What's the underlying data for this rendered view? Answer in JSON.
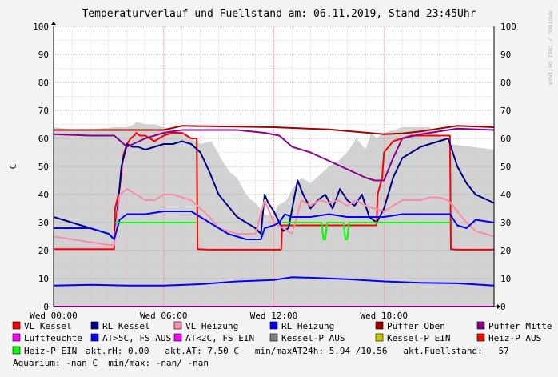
{
  "title": "Temperaturverlauf und Fuellstand am: 06.11.2019, Stand 23:45Uhr",
  "watermark": "RRDTOOL / TOBI OETIKER",
  "chart_data": {
    "type": "line",
    "ylabel": "C",
    "ylim": [
      0,
      100
    ],
    "y_ticks": [
      0,
      10,
      20,
      30,
      40,
      50,
      60,
      70,
      80,
      90,
      100
    ],
    "xlim": [
      0,
      24
    ],
    "x_ticks": [
      {
        "hour": 0,
        "label": "Wed 00:00"
      },
      {
        "hour": 6,
        "label": "Wed 06:00"
      },
      {
        "hour": 12,
        "label": "Wed 12:00"
      },
      {
        "hour": 18,
        "label": "Wed 18:00"
      }
    ],
    "grid": true,
    "area": {
      "name": "akt.Fuellstand",
      "color": "#d2d2d2",
      "x": [
        0,
        1.3,
        1.7,
        3.3,
        4.0,
        4.4,
        4.5,
        5.0,
        5.5,
        6.5,
        7.5,
        8.0,
        8.6,
        9.2,
        9.6,
        10.0,
        10.5,
        10.8,
        11.0,
        11.5,
        12.0,
        12.2,
        12.7,
        13.0,
        13.5,
        14.0,
        14.5,
        15.0,
        15.5,
        16.0,
        16.5,
        17.0,
        17.3,
        17.6,
        18.0,
        19.0,
        20.5,
        21.6,
        24.0
      ],
      "values": [
        64,
        63,
        63,
        64,
        64,
        65,
        66,
        65,
        65,
        63,
        60,
        58,
        59,
        52,
        48,
        46,
        40,
        38,
        37,
        33,
        32,
        36,
        38,
        42,
        46,
        44,
        47,
        50,
        52,
        55,
        60,
        56,
        62,
        60,
        62,
        64,
        64,
        58,
        56
      ]
    },
    "series": [
      {
        "name": "VL Kessel",
        "color": "#ff0000",
        "x": [
          0,
          1.0,
          2.5,
          3.3,
          3.35,
          3.6,
          3.8,
          4.0,
          4.2,
          4.4,
          4.5,
          4.7,
          5.0,
          5.5,
          6.0,
          6.5,
          7.0,
          7.5,
          7.8,
          7.85,
          8.5,
          9.5,
          10.5,
          10.7,
          11.0,
          11.5,
          12.0,
          12.4,
          12.45,
          15.0,
          16.0,
          17.0,
          17.6,
          17.65,
          17.9,
          18.0,
          18.5,
          19.0,
          19.5,
          20.0,
          20.5,
          21.0,
          21.6,
          21.65,
          22.0,
          22.5,
          23.0,
          24.0
        ],
        "values": [
          20.5,
          20.5,
          20.5,
          20.5,
          35,
          42,
          54,
          58,
          60,
          61,
          62,
          61,
          61,
          59,
          61,
          62,
          62,
          60,
          60,
          20.5,
          20.3,
          20.3,
          20.3,
          20.3,
          20.3,
          20.3,
          20.3,
          20.3,
          29,
          29,
          29,
          29,
          29,
          40,
          46,
          55,
          59,
          60,
          61,
          61,
          61,
          61,
          61,
          20.5,
          20.3,
          20.3,
          20.3,
          20.3
        ]
      },
      {
        "name": "RL Kessel",
        "color": "#00008b",
        "x": [
          0,
          1.0,
          2.0,
          3.0,
          3.3,
          3.5,
          3.7,
          4.0,
          4.3,
          4.6,
          5.0,
          5.5,
          6.0,
          6.5,
          7.0,
          7.5,
          8.0,
          8.5,
          9.0,
          9.5,
          10.0,
          10.5,
          11.0,
          11.3,
          11.5,
          11.7,
          12.0,
          12.3,
          12.5,
          12.8,
          13.0,
          13.3,
          13.6,
          14.0,
          14.4,
          14.8,
          15.2,
          15.6,
          16.0,
          16.4,
          16.8,
          17.2,
          17.6,
          18.0,
          18.5,
          19.0,
          19.5,
          20.0,
          20.5,
          21.0,
          21.5,
          22.0,
          22.5,
          23.0,
          24.0
        ],
        "values": [
          32,
          30,
          28,
          26,
          24,
          36,
          50,
          58,
          57,
          57,
          56,
          57,
          58,
          58,
          59,
          58,
          55,
          48,
          40,
          36,
          32,
          30,
          28,
          26,
          40,
          37,
          34,
          30,
          27,
          28,
          35,
          45,
          40,
          35,
          38,
          40,
          35,
          42,
          38,
          36,
          40,
          32,
          30,
          35,
          46,
          53,
          55,
          57,
          58,
          59,
          60,
          50,
          44,
          40,
          37
        ]
      },
      {
        "name": "VL Heizung",
        "color": "#ff8aa8",
        "x": [
          0,
          1.0,
          2.0,
          3.0,
          3.3,
          3.6,
          4.0,
          4.5,
          5.0,
          5.5,
          6.0,
          6.5,
          7.0,
          7.5,
          8.0,
          8.5,
          9.0,
          9.5,
          10.0,
          11.0,
          11.5,
          12.0,
          12.5,
          13.0,
          13.5,
          14.0,
          14.5,
          15.0,
          15.5,
          16.0,
          16.5,
          17.0,
          18.0,
          18.5,
          19.0,
          20.0,
          20.5,
          21.0,
          21.5,
          22.0,
          22.5,
          23.0,
          24.0
        ],
        "values": [
          25,
          24,
          23,
          22,
          22,
          40,
          42,
          40,
          38,
          38,
          40,
          40,
          39,
          38,
          35,
          32,
          28,
          27,
          26,
          26,
          38,
          30,
          28,
          26,
          38,
          36,
          38,
          37,
          38,
          36,
          38,
          36,
          34,
          36,
          38,
          38,
          39,
          39,
          38,
          34,
          30,
          27,
          25
        ]
      },
      {
        "name": "RL Heizung",
        "color": "#0000ff",
        "x": [
          0,
          1.0,
          2.0,
          3.0,
          3.3,
          3.6,
          4.0,
          5.0,
          6.0,
          7.0,
          7.5,
          8.0,
          8.5,
          9.0,
          9.5,
          10.0,
          10.5,
          11.0,
          11.3,
          11.5,
          12.0,
          12.3,
          12.6,
          13.0,
          14.0,
          15.0,
          16.0,
          17.0,
          18.0,
          19.0,
          20.0,
          21.0,
          21.6,
          22.0,
          22.5,
          23.0,
          24.0
        ],
        "values": [
          28,
          28,
          28,
          26,
          24,
          31,
          33,
          33,
          34,
          34,
          34,
          32,
          30,
          28,
          26,
          25,
          24,
          24,
          24,
          28,
          29,
          30,
          33,
          32,
          32,
          33,
          32,
          32,
          32,
          33,
          33,
          33,
          33,
          29,
          28,
          31,
          30
        ]
      },
      {
        "name": "Puffer Oben",
        "color": "#a00000",
        "x": [
          0,
          3.0,
          6.0,
          7.0,
          10.0,
          12.0,
          15.0,
          18.0,
          19.0,
          20.0,
          21.0,
          22.0,
          24.0
        ],
        "values": [
          63,
          63,
          63,
          64.5,
          64.2,
          64,
          63.2,
          61.5,
          61.8,
          62.5,
          63.5,
          64.5,
          64
        ]
      },
      {
        "name": "Puffer Mitte",
        "color": "#8b008b",
        "x": [
          0,
          2.0,
          3.3,
          4.0,
          5.0,
          6.0,
          7.0,
          8.0,
          10.0,
          11.5,
          12.3,
          13.0,
          14.0,
          15.0,
          16.0,
          17.0,
          17.5,
          18.0,
          18.5,
          19.0,
          20.0,
          21.0,
          22.0,
          24.0
        ],
        "values": [
          61.5,
          61,
          61,
          57,
          60,
          62,
          63,
          63,
          63,
          62,
          61,
          57,
          55,
          52,
          49,
          46,
          45,
          45,
          53,
          60,
          61.5,
          62.5,
          63.5,
          63
        ]
      },
      {
        "name": "Luftfeuchte",
        "color": "#ff00ff",
        "x": [
          0,
          24
        ],
        "values": [
          0,
          0
        ]
      },
      {
        "name": "AT>5C, FS AUS",
        "color": "#0000ff",
        "x": [
          0,
          2.0,
          4.0,
          6.0,
          8.0,
          10.0,
          12.0,
          13.0,
          14.0,
          16.0,
          18.0,
          20.0,
          22.0,
          24.0
        ],
        "values": [
          7.5,
          7.8,
          7.5,
          7.5,
          8,
          9,
          9.5,
          10.5,
          10.3,
          9.8,
          9,
          8.5,
          8.3,
          7.5
        ]
      },
      {
        "name": "Heiz-P EIN",
        "color": "#00ff00",
        "x": [
          0,
          3.3,
          3.35,
          7.8,
          7.85,
          12.4,
          12.45,
          14.6,
          14.7,
          14.8,
          14.9,
          15.8,
          15.9,
          16.0,
          16.1,
          21.6,
          21.65,
          24.0
        ],
        "values": [
          null,
          null,
          30,
          30,
          null,
          null,
          30,
          30,
          24,
          24,
          30,
          30,
          24,
          24,
          30,
          30,
          null,
          null
        ]
      }
    ]
  },
  "legend": [
    {
      "label": "VL Kessel",
      "color": "#ff0000"
    },
    {
      "label": "RL Kessel",
      "color": "#00008b"
    },
    {
      "label": "VL Heizung",
      "color": "#ff8aa8"
    },
    {
      "label": "RL Heizung",
      "color": "#0000ff"
    },
    {
      "label": "Puffer Oben",
      "color": "#a00000"
    },
    {
      "label": "Puffer Mitte",
      "color": "#8b008b"
    },
    {
      "label": "Luftfeuchte",
      "color": "#ff00ff"
    },
    {
      "label": "AT>5C, FS AUS",
      "color": "#0000ff"
    },
    {
      "label": "AT<2C, FS EIN",
      "color": "#ff00ff"
    },
    {
      "label": "Kessel-P AUS",
      "color": "#808080"
    },
    {
      "label": "Kessel-P EIN",
      "color": "#c8c800"
    },
    {
      "label": "Heiz-P AUS",
      "color": "#ff0000"
    },
    {
      "label": "Heiz-P EIN",
      "color": "#00ff00"
    }
  ],
  "stats": {
    "line1_suffix": "akt.rH: 0.00   akt.AT: 7.50 C   min/maxAT24h: 5.94 /10.56   akt.Fuellstand:   57",
    "line2": "Aquarium: -nan C  min/max: -nan/ -nan"
  }
}
